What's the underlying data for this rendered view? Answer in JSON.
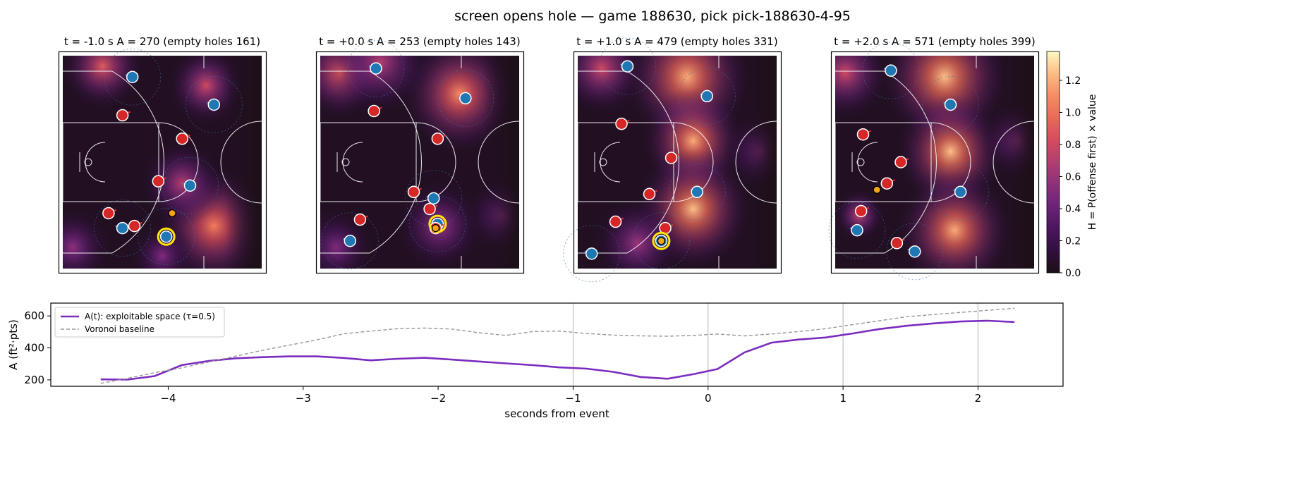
{
  "figure": {
    "title": "screen opens hole — game 188630, pick pick-188630-4-95"
  },
  "panels": [
    {
      "label": "t = -1.0 s   A = 270  (empty holes 161)",
      "blobs": [
        [
          0.2,
          0.05,
          0.13,
          0.9
        ],
        [
          0.72,
          0.14,
          0.12,
          0.8
        ],
        [
          0.76,
          0.8,
          0.18,
          1.05
        ],
        [
          0.6,
          0.6,
          0.13,
          0.7
        ],
        [
          0.05,
          0.9,
          0.12,
          0.55
        ],
        [
          0.5,
          0.94,
          0.1,
          0.5
        ]
      ],
      "offense": [
        [
          0.35,
          0.1
        ],
        [
          0.76,
          0.23
        ],
        [
          0.64,
          0.61
        ],
        [
          0.3,
          0.81
        ],
        [
          0.52,
          0.85
        ]
      ],
      "defense": [
        [
          0.3,
          0.28
        ],
        [
          0.6,
          0.39
        ],
        [
          0.48,
          0.59
        ],
        [
          0.23,
          0.74
        ],
        [
          0.36,
          0.8
        ]
      ],
      "ball": [
        0.55,
        0.74
      ],
      "highlight": [
        0.52,
        0.85
      ]
    },
    {
      "label": "t = +0.0 s   A = 253  (empty holes 143)",
      "blobs": [
        [
          0.1,
          0.08,
          0.14,
          0.9
        ],
        [
          0.7,
          0.18,
          0.18,
          1.1
        ],
        [
          0.3,
          0.03,
          0.16,
          0.7
        ],
        [
          0.6,
          0.8,
          0.14,
          0.6
        ],
        [
          0.08,
          0.9,
          0.12,
          0.5
        ],
        [
          0.92,
          0.75,
          0.12,
          0.5
        ]
      ],
      "offense": [
        [
          0.28,
          0.06
        ],
        [
          0.73,
          0.2
        ],
        [
          0.57,
          0.67
        ],
        [
          0.59,
          0.79
        ],
        [
          0.15,
          0.87
        ]
      ],
      "defense": [
        [
          0.27,
          0.26
        ],
        [
          0.59,
          0.39
        ],
        [
          0.47,
          0.64
        ],
        [
          0.55,
          0.72
        ],
        [
          0.2,
          0.77
        ],
        [
          0.58,
          0.81
        ]
      ],
      "ball": [
        0.58,
        0.81
      ],
      "highlight": [
        0.59,
        0.79
      ]
    },
    {
      "label": "t = +1.0 s   A = 479  (empty holes 331)",
      "blobs": [
        [
          0.55,
          0.1,
          0.2,
          1.2
        ],
        [
          0.58,
          0.4,
          0.16,
          1.2
        ],
        [
          0.58,
          0.72,
          0.18,
          1.25
        ],
        [
          0.12,
          0.06,
          0.14,
          0.8
        ],
        [
          0.92,
          0.45,
          0.12,
          0.5
        ],
        [
          0.3,
          0.88,
          0.14,
          0.6
        ]
      ],
      "offense": [
        [
          0.25,
          0.05
        ],
        [
          0.65,
          0.19
        ],
        [
          0.6,
          0.64
        ],
        [
          0.07,
          0.93
        ],
        [
          0.42,
          0.87
        ]
      ],
      "defense": [
        [
          0.22,
          0.32
        ],
        [
          0.47,
          0.48
        ],
        [
          0.36,
          0.65
        ],
        [
          0.44,
          0.81
        ],
        [
          0.19,
          0.78
        ]
      ],
      "ball": [
        0.42,
        0.87
      ],
      "highlight": [
        0.42,
        0.87
      ]
    },
    {
      "label": "t = +2.0 s   A = 571  (empty holes 399)",
      "blobs": [
        [
          0.55,
          0.1,
          0.2,
          1.25
        ],
        [
          0.58,
          0.45,
          0.17,
          1.25
        ],
        [
          0.6,
          0.82,
          0.18,
          1.2
        ],
        [
          0.05,
          0.08,
          0.14,
          0.8
        ],
        [
          0.12,
          0.75,
          0.08,
          0.75
        ],
        [
          0.92,
          0.4,
          0.12,
          0.55
        ]
      ],
      "offense": [
        [
          0.28,
          0.07
        ],
        [
          0.58,
          0.23
        ],
        [
          0.63,
          0.64
        ],
        [
          0.11,
          0.82
        ],
        [
          0.4,
          0.92
        ]
      ],
      "defense": [
        [
          0.14,
          0.37
        ],
        [
          0.33,
          0.5
        ],
        [
          0.26,
          0.6
        ],
        [
          0.13,
          0.73
        ],
        [
          0.31,
          0.88
        ]
      ],
      "ball": [
        0.21,
        0.63
      ],
      "highlight": null
    }
  ],
  "colorbar": {
    "label": "H = P(offense first) × value",
    "ticks": [
      "0.0",
      "0.2",
      "0.4",
      "0.6",
      "0.8",
      "1.0",
      "1.2"
    ],
    "max": 1.38
  },
  "chart_data": {
    "type": "line",
    "xlabel": "seconds from event",
    "ylabel": "A (ft²·pts)",
    "xlim": [
      -4.87,
      2.63
    ],
    "ylim": [
      160,
      680
    ],
    "xticks": [
      -4,
      -3,
      -2,
      -1,
      0,
      1,
      2
    ],
    "yticks": [
      200,
      400,
      600
    ],
    "grid_x": [
      -1,
      0,
      1,
      2
    ],
    "legend_position": "upper-left",
    "series": [
      {
        "name": "A(t): exploitable space (τ=0.5)",
        "color": "#7b2cbf",
        "x": [
          -4.5,
          -4.3,
          -4.1,
          -3.9,
          -3.7,
          -3.5,
          -3.3,
          -3.1,
          -2.9,
          -2.7,
          -2.5,
          -2.3,
          -2.1,
          -1.9,
          -1.7,
          -1.5,
          -1.3,
          -1.1,
          -0.9,
          -0.7,
          -0.5,
          -0.3,
          -0.1,
          0.07,
          0.27,
          0.47,
          0.67,
          0.87,
          1.07,
          1.27,
          1.47,
          1.67,
          1.87,
          2.07,
          2.27
        ],
        "values": [
          203,
          202,
          224,
          292,
          318,
          335,
          342,
          347,
          347,
          337,
          322,
          332,
          338,
          327,
          315,
          303,
          292,
          278,
          270,
          250,
          218,
          207,
          237,
          268,
          372,
          433,
          452,
          465,
          490,
          518,
          538,
          553,
          565,
          570,
          562
        ]
      },
      {
        "name": "Voronoi baseline",
        "color": "#999999",
        "dashed": true,
        "x": [
          -4.5,
          -4.3,
          -4.1,
          -3.9,
          -3.7,
          -3.5,
          -3.3,
          -3.1,
          -2.9,
          -2.7,
          -2.5,
          -2.3,
          -2.1,
          -1.9,
          -1.7,
          -1.5,
          -1.3,
          -1.1,
          -0.9,
          -0.7,
          -0.5,
          -0.3,
          -0.1,
          0.07,
          0.27,
          0.47,
          0.67,
          0.87,
          1.07,
          1.27,
          1.47,
          1.67,
          1.87,
          2.07,
          2.27
        ],
        "values": [
          178,
          210,
          245,
          275,
          312,
          348,
          385,
          418,
          450,
          488,
          505,
          520,
          524,
          518,
          495,
          478,
          502,
          505,
          490,
          480,
          475,
          473,
          478,
          487,
          475,
          487,
          502,
          520,
          545,
          570,
          595,
          608,
          622,
          635,
          648
        ]
      }
    ]
  }
}
